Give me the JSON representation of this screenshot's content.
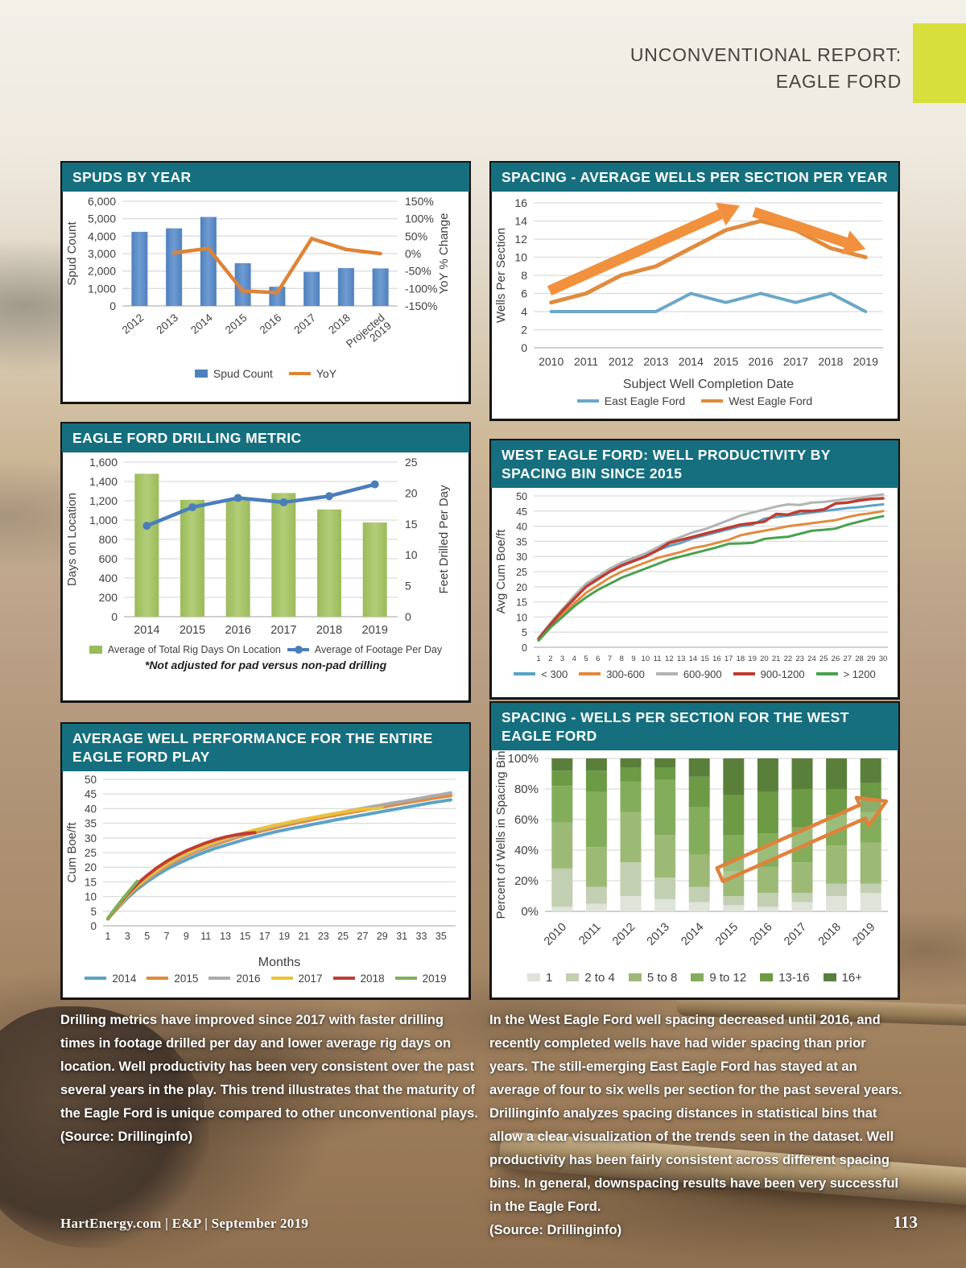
{
  "page": {
    "masthead_line1": "UNCONVENTIONAL REPORT:",
    "masthead_line2": "EAGLE FORD",
    "accent_color": "#d7df3c",
    "panel_header_color": "#156f7e",
    "footer_left": "HartEnergy.com  |  E&P  |  September 2019",
    "page_number": "113"
  },
  "notes": {
    "left_body": "Drilling metrics have improved since 2017 with faster drilling times in footage drilled per day and lower average rig days on location. Well productivity has been very consistent over the past several years in the play. This trend illustrates that the maturity of the Eagle Ford is unique compared to other unconventional plays.",
    "left_source": "(Source: Drillinginfo)",
    "right_body": "In the West Eagle Ford well spacing decreased until 2016, and recently completed wells have had wider spacing than prior years. The still-emerging East Eagle Ford has stayed at an average of four to six wells per section for the past several years. Drillinginfo analyzes spacing distances in statistical bins that allow a clear visualization of the trends seen in the dataset. Well productivity has been fairly consistent across different spacing bins. In general, downspacing results have been very successful in the Eagle Ford.",
    "right_source": "(Source: Drillinginfo)"
  },
  "chart_data": [
    {
      "id": "spuds-by-year",
      "type": "bar-line-combo",
      "title": "SPUDS BY YEAR",
      "categories": [
        "2012",
        "2013",
        "2014",
        "2015",
        "2016",
        "2017",
        "2018",
        "Projected|2019"
      ],
      "bar_series": {
        "name": "Spud Count",
        "color": "#4f81bd",
        "color_light": "#6f9bd2",
        "values": [
          4250,
          4450,
          5100,
          2450,
          1100,
          1950,
          2170,
          2150
        ]
      },
      "line_series": {
        "name": "YoY",
        "color": "#dd8436",
        "markers": false,
        "values": [
          null,
          2,
          15,
          -107,
          -112,
          43,
          12,
          0
        ]
      },
      "y_left": {
        "label": "Spud Count",
        "min": 0,
        "max": 6000,
        "step": 1000,
        "format": "comma"
      },
      "y_right": {
        "label": "YoY % Change",
        "min": -150,
        "max": 150,
        "step": 50,
        "format": "percent"
      },
      "x_label_rotation": -40
    },
    {
      "id": "spacing-average-wells-per-section",
      "type": "line",
      "title": "SPACING - AVERAGE WELLS PER SECTION PER YEAR",
      "categories": [
        "2010",
        "2011",
        "2012",
        "2013",
        "2014",
        "2015",
        "2016",
        "2017",
        "2018",
        "2019"
      ],
      "x_title": "Subject Well Completion Date",
      "y": {
        "label": "Wells Per Section",
        "min": 0,
        "max": 16,
        "step": 2,
        "format": "plain"
      },
      "series": [
        {
          "name": "East Eagle Ford",
          "color": "#6aa7c8",
          "width": 4,
          "values": [
            4,
            4,
            4,
            4,
            6,
            5,
            6,
            5,
            6,
            4
          ]
        },
        {
          "name": "West Eagle Ford",
          "color": "#e08b3d",
          "width": 5,
          "values": [
            5,
            6,
            8,
            9,
            11,
            13,
            14,
            13,
            11,
            10
          ]
        }
      ],
      "solid_arrows": [
        {
          "from": [
            0.45,
            6.3
          ],
          "to": [
            5.9,
            15.7
          ],
          "color": "#f1913d"
        },
        {
          "from": [
            6.3,
            15.0
          ],
          "to": [
            9.5,
            10.9
          ],
          "color": "#f1913d"
        }
      ]
    },
    {
      "id": "eagle-ford-drilling-metric",
      "type": "bar-line-combo",
      "title": "EAGLE FORD DRILLING METRIC",
      "categories": [
        "2014",
        "2015",
        "2016",
        "2017",
        "2018",
        "2019"
      ],
      "bar_series": {
        "name": "Average of Total Rig Days On Location",
        "color": "#9bbb59",
        "color_light": "#b3cd79",
        "values": [
          1480,
          1210,
          1215,
          1280,
          1110,
          975
        ]
      },
      "line_series": {
        "name": "Average of Footage Per Day",
        "color": "#4a7ebb",
        "markers": true,
        "values": [
          14.7,
          17.7,
          19.2,
          18.5,
          19.5,
          21.4
        ]
      },
      "y_left": {
        "label": "Days on Location",
        "min": 0,
        "max": 1600,
        "step": 200,
        "format": "comma"
      },
      "y_right": {
        "label": "Feet Drilled Per Day",
        "min": 0,
        "max": 25,
        "step": 5,
        "format": "plain"
      },
      "x_label_rotation": 0,
      "footnote": "*Not adjusted for pad versus non-pad drilling"
    },
    {
      "id": "west-eagle-ford-productivity-by-spacing-bin",
      "type": "line",
      "title_lines": [
        "WEST EAGLE FORD: WELL PRODUCTIVITY BY",
        "SPACING BIN SINCE 2015"
      ],
      "x": {
        "min": 1,
        "max": 30,
        "tick_step": 1
      },
      "y": {
        "label": "Avg Cum Boe/ft",
        "min": 0,
        "max": 50,
        "step": 5,
        "format": "plain"
      },
      "series": [
        {
          "name": "< 300",
          "color": "#5ba3c6",
          "width": 3,
          "values": [
            3,
            8,
            12.5,
            16.5,
            20.5,
            23,
            25.5,
            27.5,
            29,
            30.5,
            32,
            33.5,
            34.5,
            36,
            37,
            38,
            39,
            40,
            40.5,
            42.5,
            43,
            43.5,
            44,
            44.5,
            45,
            45.5,
            46,
            46.3,
            46.8,
            47.2
          ]
        },
        {
          "name": "300-600",
          "color": "#e08b3d",
          "width": 3,
          "values": [
            2.5,
            7,
            11,
            14.5,
            18,
            20.5,
            23,
            25,
            26.5,
            28,
            29.5,
            30.5,
            31.5,
            32.8,
            33.5,
            34.5,
            35.5,
            37,
            37.8,
            38.5,
            39.2,
            40,
            40.5,
            41,
            41.5,
            42,
            43,
            43.8,
            44.3,
            45
          ]
        },
        {
          "name": "600-900",
          "color": "#b3b3b3",
          "width": 3,
          "values": [
            3,
            8,
            12.5,
            17,
            21,
            23.5,
            26,
            28,
            29.5,
            31,
            33,
            35,
            36.5,
            38,
            39,
            40.5,
            42,
            43.5,
            44.5,
            45.5,
            46.5,
            47.2,
            47,
            47.8,
            48,
            48.5,
            49,
            49.3,
            50,
            50.5
          ]
        },
        {
          "name": "900-1200",
          "color": "#bf3d32",
          "width": 3.5,
          "values": [
            2.8,
            7.5,
            12,
            16,
            20,
            22.5,
            25,
            27,
            28.5,
            30,
            32,
            34.5,
            35.5,
            36.5,
            37.5,
            38.5,
            39.5,
            40.5,
            41,
            41.5,
            44,
            43.8,
            45,
            45,
            45.5,
            47.5,
            47.8,
            48.5,
            49,
            49.2
          ]
        },
        {
          "name": "> 1200",
          "color": "#4aa14e",
          "width": 3,
          "values": [
            2.2,
            6.5,
            10,
            13.5,
            16.5,
            19,
            21,
            23,
            24.5,
            26,
            27.5,
            29,
            30,
            31,
            32,
            33,
            34.2,
            34.3,
            34.5,
            35.8,
            36.2,
            36.5,
            37.5,
            38.5,
            38.8,
            39.2,
            40.5,
            41.5,
            42.5,
            43.3
          ]
        }
      ]
    },
    {
      "id": "average-well-performance-eagle-ford-play",
      "type": "line",
      "title_lines": [
        "AVERAGE WELL PERFORMANCE FOR THE ENTIRE",
        "EAGLE FORD PLAY"
      ],
      "x_title": "Months",
      "x": {
        "min": 1,
        "max": 36,
        "ticks": [
          1,
          3,
          5,
          7,
          9,
          11,
          13,
          15,
          17,
          19,
          21,
          23,
          25,
          27,
          29,
          31,
          33,
          35
        ]
      },
      "y": {
        "label": "Cum Boe/ft",
        "min": 0,
        "max": 50,
        "step": 5,
        "format": "plain"
      },
      "series": [
        {
          "name": "2014",
          "color": "#5ba3c6",
          "width": 4,
          "values": [
            2.5,
            6,
            9.5,
            12.5,
            15,
            17.3,
            19.3,
            21,
            22.5,
            24,
            25.3,
            26.5,
            27.5,
            28.5,
            29.5,
            30.4,
            31.2,
            32,
            32.7,
            33.4,
            34,
            34.7,
            35.3,
            36,
            36.6,
            37.2,
            37.8,
            38.4,
            39,
            39.6,
            40.2,
            40.8,
            41.4,
            42,
            42.5,
            43
          ]
        },
        {
          "name": "2015",
          "color": "#e08b3d",
          "width": 4,
          "values": [
            2.3,
            6.2,
            10,
            13.2,
            15.8,
            18.2,
            20.3,
            22.2,
            23.8,
            25.3,
            26.6,
            27.8,
            28.9,
            30,
            31,
            31.8,
            32.6,
            33.4,
            34.2,
            34.9,
            35.6,
            36.3,
            37,
            37.6,
            38.2,
            38.8,
            39.4,
            40,
            40.5,
            41.1,
            41.7,
            42.3,
            42.8,
            43.4,
            43.9,
            44.4
          ]
        },
        {
          "name": "2016",
          "color": "#ababab",
          "width": 4,
          "values": [
            2.4,
            6.4,
            10.3,
            13.6,
            16.2,
            18.6,
            20.8,
            22.7,
            24.3,
            25.8,
            27.1,
            28.3,
            29.4,
            30.5,
            31.5,
            32.4,
            33.2,
            34,
            34.8,
            35.5,
            36.2,
            36.9,
            37.6,
            38.2,
            38.8,
            39.5,
            40.1,
            40.7,
            41.3,
            41.9,
            42.4,
            43,
            43.6,
            44.2,
            44.8,
            45.4
          ]
        },
        {
          "name": "2017",
          "color": "#ecc13a",
          "width": 4,
          "values": [
            2.4,
            6.5,
            10.4,
            13.8,
            16.5,
            19,
            21.2,
            23.1,
            24.8,
            26.2,
            27.5,
            28.7,
            29.8,
            30.8,
            31.8,
            32.7,
            33.5,
            34.3,
            35,
            35.7,
            36.4,
            37,
            37.6,
            38.2,
            38.8,
            39.3,
            39.8,
            39.9,
            40.3
          ]
        },
        {
          "name": "2018",
          "color": "#bf3d32",
          "width": 4,
          "values": [
            2.5,
            6.8,
            10.8,
            14.3,
            17.2,
            19.8,
            22,
            23.9,
            25.6,
            27,
            28.3,
            29.4,
            30.3,
            31,
            31.5,
            31.8
          ]
        },
        {
          "name": "2019",
          "color": "#7fb05a",
          "width": 4,
          "values": [
            2.6,
            7,
            11.2,
            15.2
          ]
        }
      ]
    },
    {
      "id": "spacing-wells-per-section-west-eagle-ford",
      "type": "stacked-bar",
      "title_lines": [
        "SPACING - WELLS PER SECTION FOR THE WEST",
        "EAGLE FORD"
      ],
      "categories": [
        "2010",
        "2011",
        "2012",
        "2013",
        "2014",
        "2015",
        "2016",
        "2017",
        "2018",
        "2019"
      ],
      "bins": [
        {
          "name": "1",
          "color": "#dfe3da"
        },
        {
          "name": "2 to 4",
          "color": "#c2cfb2"
        },
        {
          "name": "5 to 8",
          "color": "#9cba76"
        },
        {
          "name": "9 to 12",
          "color": "#83ad5a"
        },
        {
          "name": "13-16",
          "color": "#6d9a45"
        },
        {
          "name": "16+",
          "color": "#5a7f3a"
        }
      ],
      "values_percent": [
        [
          3,
          25,
          30,
          24,
          10,
          8
        ],
        [
          5,
          11,
          26,
          36,
          14,
          8
        ],
        [
          10,
          22,
          33,
          20,
          9,
          6
        ],
        [
          8,
          14,
          28,
          36,
          8,
          6
        ],
        [
          6,
          10,
          21,
          31,
          20,
          12
        ],
        [
          4,
          6,
          16,
          24,
          26,
          24
        ],
        [
          3,
          9,
          17,
          22,
          27,
          22
        ],
        [
          6,
          6,
          20,
          23,
          25,
          20
        ],
        [
          10,
          8,
          25,
          20,
          17,
          20
        ],
        [
          12,
          6,
          27,
          20,
          19,
          16
        ]
      ],
      "y": {
        "label": "Percent of Wells in Spacing Bin",
        "min": 0,
        "max": 100,
        "step": 20,
        "format": "percent"
      },
      "x_label_rotation": -45,
      "outline_arrow": {
        "from": [
          4.6,
          24
        ],
        "to": [
          9.45,
          72
        ],
        "color": "#e0813c"
      }
    }
  ]
}
